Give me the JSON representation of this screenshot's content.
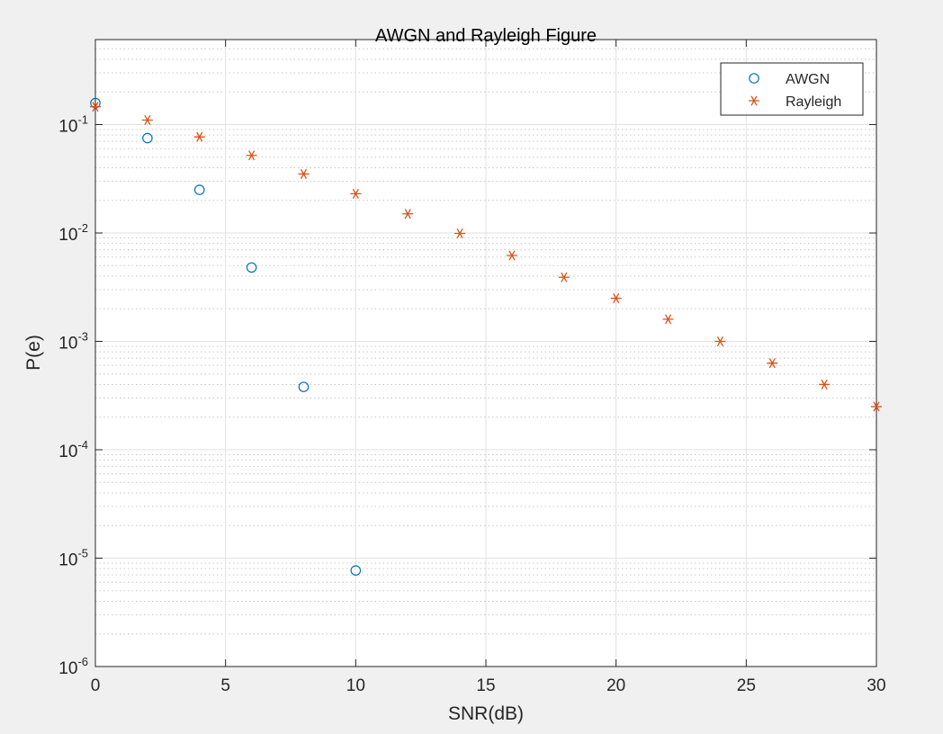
{
  "chart_data": {
    "type": "scatter",
    "title": "AWGN and Rayleigh Figure",
    "xlabel": "SNR(dB)",
    "ylabel": "P(e)",
    "xlim": [
      0,
      30
    ],
    "ylim": [
      1e-06,
      0.5
    ],
    "yscale": "log",
    "grid": true,
    "minor_grid": true,
    "legend_position": "top-right",
    "xticks": [
      0,
      5,
      10,
      15,
      20,
      25,
      30
    ],
    "xtick_labels": [
      "0",
      "5",
      "10",
      "15",
      "20",
      "25",
      "30"
    ],
    "yticks": [
      {
        "value": 1e-06,
        "base": "10",
        "exp": "-6"
      },
      {
        "value": 1e-05,
        "base": "10",
        "exp": "-5"
      },
      {
        "value": 0.0001,
        "base": "10",
        "exp": "-4"
      },
      {
        "value": 0.001,
        "base": "10",
        "exp": "-3"
      },
      {
        "value": 0.01,
        "base": "10",
        "exp": "-2"
      },
      {
        "value": 0.1,
        "base": "10",
        "exp": "-1"
      }
    ],
    "series": [
      {
        "name": "AWGN",
        "marker": "circle",
        "color": "#0072bd",
        "x": [
          0,
          2,
          4,
          6,
          8,
          10
        ],
        "y": [
          0.158,
          0.075,
          0.025,
          0.0048,
          0.00038,
          7.7e-06
        ]
      },
      {
        "name": "Rayleigh",
        "marker": "asterisk",
        "color": "#d95319",
        "x": [
          0,
          2,
          4,
          6,
          8,
          10,
          12,
          14,
          16,
          18,
          20,
          22,
          24,
          26,
          28,
          30
        ],
        "y": [
          0.146,
          0.11,
          0.077,
          0.052,
          0.035,
          0.023,
          0.015,
          0.0099,
          0.0062,
          0.0039,
          0.0025,
          0.0016,
          0.001,
          0.00063,
          0.0004,
          0.00025
        ]
      }
    ]
  }
}
